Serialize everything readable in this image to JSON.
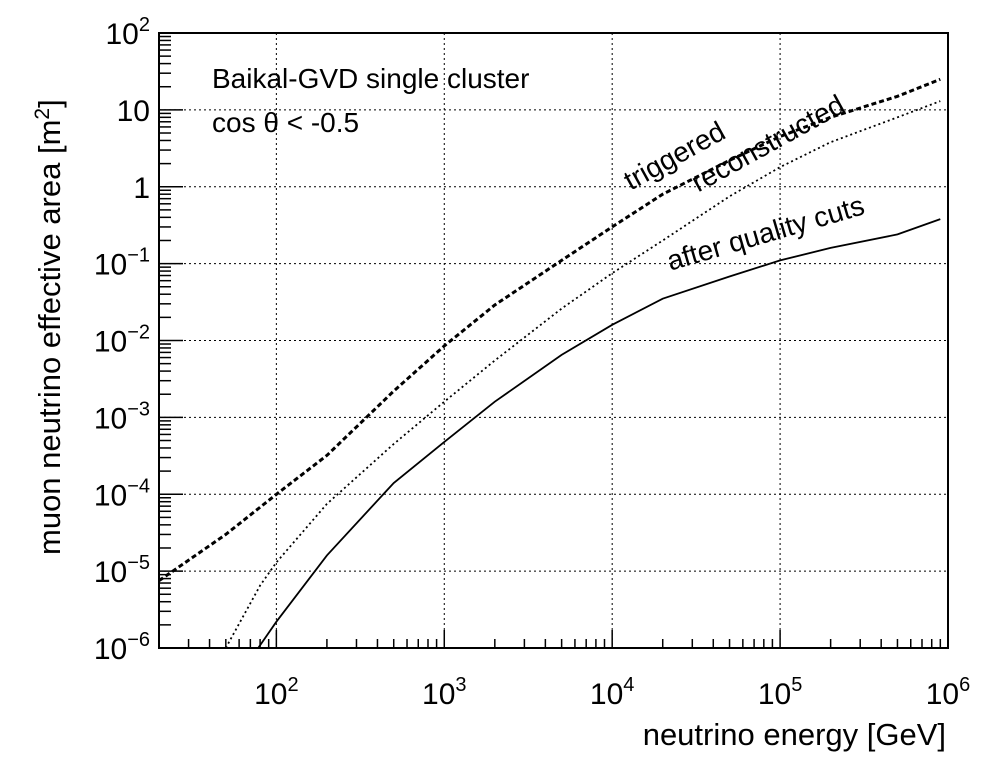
{
  "chart_data": {
    "type": "line",
    "title": "",
    "xlabel": "neutrino energy [GeV]",
    "ylabel": "muon neutrino effective area [m²]",
    "ylabel_base": "muon neutrino effective area [m",
    "ylabel_sup": "2",
    "ylabel_tail": "]",
    "xscale": "log",
    "yscale": "log",
    "xlim": [
      20,
      1000000
    ],
    "ylim": [
      1e-06,
      100
    ],
    "grid": true,
    "legend": "none",
    "x_ticks": [
      {
        "value": 100,
        "base": "10",
        "exp": "2"
      },
      {
        "value": 1000,
        "base": "10",
        "exp": "3"
      },
      {
        "value": 10000,
        "base": "10",
        "exp": "4"
      },
      {
        "value": 100000,
        "base": "10",
        "exp": "5"
      },
      {
        "value": 1000000,
        "base": "10",
        "exp": "6"
      }
    ],
    "y_ticks": [
      {
        "value": 1e-06,
        "base": "10",
        "exp": "−6"
      },
      {
        "value": 1e-05,
        "base": "10",
        "exp": "−5"
      },
      {
        "value": 0.0001,
        "base": "10",
        "exp": "−4"
      },
      {
        "value": 0.001,
        "base": "10",
        "exp": "−3"
      },
      {
        "value": 0.01,
        "base": "10",
        "exp": "−2"
      },
      {
        "value": 0.1,
        "base": "10",
        "exp": "−1"
      },
      {
        "value": 1,
        "base": "1",
        "exp": ""
      },
      {
        "value": 10,
        "base": "10",
        "exp": ""
      },
      {
        "value": 100,
        "base": "10",
        "exp": "2"
      }
    ],
    "annotations": [
      "Baikal-GVD single cluster",
      "cos θ < -0.5"
    ],
    "series": [
      {
        "name": "triggered",
        "style": "dashed",
        "x": [
          20,
          50,
          100,
          200,
          500,
          1000,
          2000,
          5000,
          10000,
          20000,
          50000,
          100000,
          200000,
          500000,
          900000
        ],
        "y": [
          7.5e-06,
          3e-05,
          0.0001,
          0.00032,
          0.0022,
          0.0085,
          0.029,
          0.11,
          0.3,
          0.8,
          2.2,
          4.5,
          8,
          15,
          25
        ]
      },
      {
        "name": "reconstructed",
        "style": "dotted",
        "x": [
          50,
          80,
          100,
          200,
          500,
          1000,
          2000,
          5000,
          10000,
          20000,
          50000,
          100000,
          200000,
          500000,
          900000
        ],
        "y": [
          1e-06,
          6.5e-06,
          1.3e-05,
          7.5e-05,
          0.00045,
          0.0016,
          0.0055,
          0.026,
          0.075,
          0.2,
          0.75,
          1.8,
          3.8,
          8,
          13
        ]
      },
      {
        "name": "after quality cuts",
        "style": "solid",
        "x": [
          78,
          100,
          200,
          500,
          1000,
          2000,
          5000,
          10000,
          20000,
          50000,
          100000,
          200000,
          500000,
          900000
        ],
        "y": [
          1e-06,
          2.2e-06,
          1.6e-05,
          0.00014,
          0.00048,
          0.0016,
          0.0065,
          0.016,
          0.035,
          0.068,
          0.11,
          0.16,
          0.24,
          0.38
        ]
      }
    ],
    "curve_labels": [
      {
        "text": "triggered",
        "series": 0
      },
      {
        "text": "reconstructed",
        "series": 1
      },
      {
        "text": "after quality cuts",
        "series": 2
      }
    ]
  }
}
